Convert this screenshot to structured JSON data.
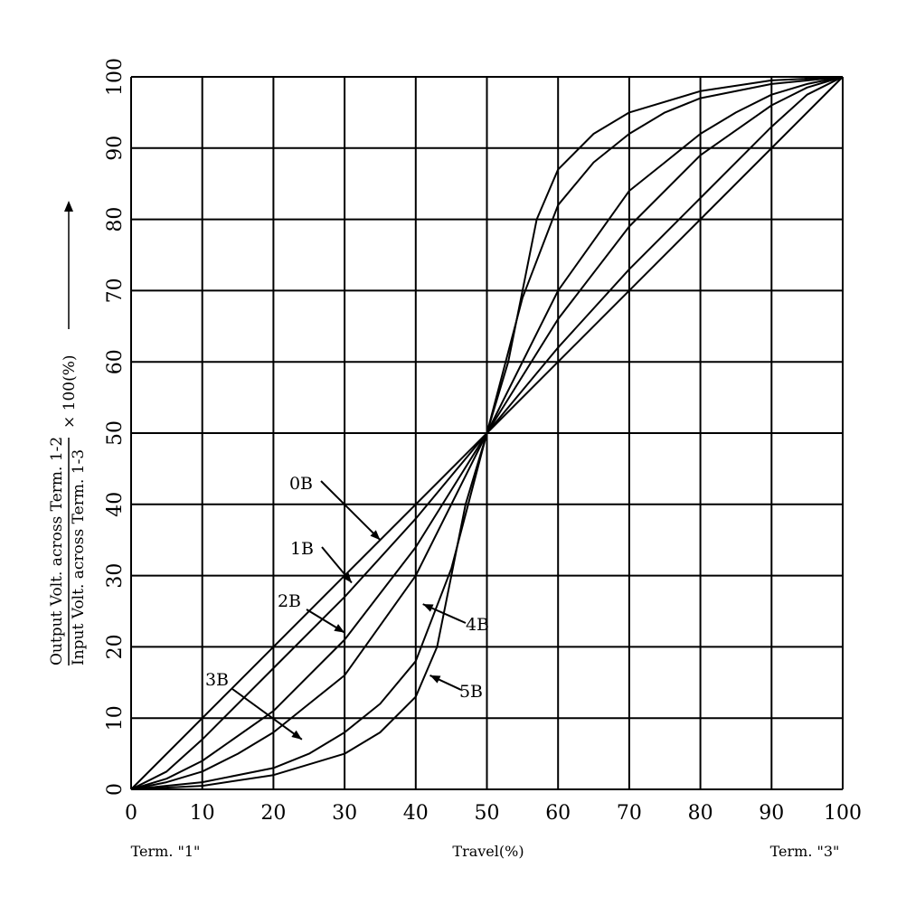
{
  "chart_data": {
    "type": "line",
    "xlim": [
      0,
      100
    ],
    "ylim": [
      0,
      100
    ],
    "grid": true,
    "x_ticks": [
      "0",
      "10",
      "20",
      "30",
      "40",
      "50",
      "60",
      "70",
      "80",
      "90",
      "100"
    ],
    "y_ticks": [
      "0",
      "10",
      "20",
      "30",
      "40",
      "50",
      "60",
      "70",
      "80",
      "90",
      "100"
    ],
    "xlabel": "Travel(%)",
    "x_end_labels": {
      "left": "Term. \"1\"",
      "right": "Term. \"3\""
    },
    "ylabel": {
      "numerator": "Output Volt. across  Term. 1-2",
      "denominator": "Input  Volt. across  Term. 1-3",
      "factor": "× 100(%)"
    },
    "series": [
      {
        "name": "0B",
        "x": [
          0,
          50,
          100
        ],
        "y": [
          0,
          50,
          100
        ]
      },
      {
        "name": "1B",
        "x": [
          0,
          5,
          10,
          20,
          30,
          40,
          50,
          60,
          70,
          80,
          90,
          95,
          100
        ],
        "y": [
          0,
          2.5,
          7,
          17,
          27,
          38,
          50,
          62,
          73,
          83,
          93,
          97.5,
          100
        ]
      },
      {
        "name": "2B",
        "x": [
          0,
          5,
          10,
          20,
          30,
          40,
          50,
          60,
          70,
          80,
          90,
          95,
          100
        ],
        "y": [
          0,
          1.5,
          4,
          11,
          21,
          34,
          50,
          66,
          79,
          89,
          96,
          98.5,
          100
        ]
      },
      {
        "name": "3B",
        "x": [
          0,
          5,
          10,
          15,
          20,
          25,
          30,
          40,
          50,
          60,
          70,
          75,
          80,
          85,
          90,
          95,
          100
        ],
        "y": [
          0,
          1,
          2.5,
          5,
          8,
          12,
          16,
          30,
          50,
          70,
          84,
          88,
          92,
          95,
          97.5,
          99,
          100
        ]
      },
      {
        "name": "4B",
        "x": [
          0,
          10,
          20,
          25,
          30,
          35,
          40,
          45,
          50,
          55,
          60,
          65,
          70,
          75,
          80,
          90,
          100
        ],
        "y": [
          0,
          1,
          3,
          5,
          8,
          12,
          18,
          31,
          50,
          69,
          82,
          88,
          92,
          95,
          97,
          99,
          100
        ]
      },
      {
        "name": "5B",
        "x": [
          0,
          10,
          20,
          30,
          35,
          40,
          43,
          45,
          47,
          50,
          53,
          55,
          57,
          60,
          65,
          70,
          80,
          90,
          100
        ],
        "y": [
          0,
          0.5,
          2,
          5,
          8,
          13,
          20,
          30,
          40,
          50,
          60,
          70,
          80,
          87,
          92,
          95,
          98,
          99.5,
          100
        ]
      }
    ],
    "annotations": [
      {
        "text": "0B",
        "points_to": [
          35,
          35
        ]
      },
      {
        "text": "1B",
        "points_to": [
          31,
          29
        ]
      },
      {
        "text": "2B",
        "points_to": [
          30,
          22
        ]
      },
      {
        "text": "3B",
        "points_to": [
          24,
          7
        ]
      },
      {
        "text": "4B",
        "points_to": [
          41,
          26
        ]
      },
      {
        "text": "5B",
        "points_to": [
          42,
          16
        ]
      }
    ]
  }
}
